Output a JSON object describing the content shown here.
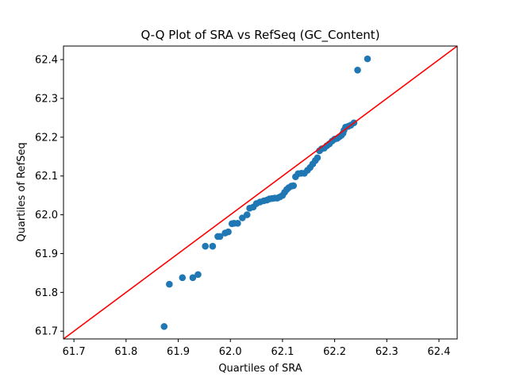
{
  "chart_data": {
    "type": "scatter",
    "title": "Q-Q Plot of SRA vs RefSeq (GC_Content)",
    "xlabel": "Quartiles of SRA",
    "ylabel": "Quartiles of RefSeq",
    "xlim": [
      61.68,
      62.435
    ],
    "ylim": [
      61.68,
      62.435
    ],
    "xticks": [
      61.7,
      61.8,
      61.9,
      62.0,
      62.1,
      62.2,
      62.3,
      62.4
    ],
    "yticks": [
      61.7,
      61.8,
      61.9,
      62.0,
      62.1,
      62.2,
      62.3,
      62.4
    ],
    "grid": false,
    "point_color": "#1f77b4",
    "reference_line": {
      "color": "#ff0000",
      "from": [
        61.68,
        61.68
      ],
      "to": [
        62.435,
        62.435
      ]
    },
    "points": [
      [
        61.873,
        61.712
      ],
      [
        61.883,
        61.821
      ],
      [
        61.908,
        61.838
      ],
      [
        61.928,
        61.838
      ],
      [
        61.938,
        61.846
      ],
      [
        61.952,
        61.919
      ],
      [
        61.966,
        61.919
      ],
      [
        61.976,
        61.944
      ],
      [
        61.98,
        61.944
      ],
      [
        61.99,
        61.953
      ],
      [
        61.996,
        61.956
      ],
      [
        62.003,
        61.977
      ],
      [
        62.007,
        61.978
      ],
      [
        62.014,
        61.978
      ],
      [
        62.023,
        61.992
      ],
      [
        62.032,
        62.0
      ],
      [
        62.037,
        62.017
      ],
      [
        62.044,
        62.02
      ],
      [
        62.05,
        62.029
      ],
      [
        62.057,
        62.033
      ],
      [
        62.064,
        62.036
      ],
      [
        62.07,
        62.038
      ],
      [
        62.075,
        62.041
      ],
      [
        62.08,
        62.042
      ],
      [
        62.085,
        62.043
      ],
      [
        62.09,
        62.043
      ],
      [
        62.095,
        62.046
      ],
      [
        62.1,
        62.05
      ],
      [
        62.104,
        62.058
      ],
      [
        62.108,
        62.065
      ],
      [
        62.112,
        62.07
      ],
      [
        62.117,
        62.074
      ],
      [
        62.121,
        62.075
      ],
      [
        62.125,
        62.098
      ],
      [
        62.13,
        62.106
      ],
      [
        62.136,
        62.107
      ],
      [
        62.142,
        62.107
      ],
      [
        62.148,
        62.115
      ],
      [
        62.153,
        62.122
      ],
      [
        62.158,
        62.131
      ],
      [
        62.163,
        62.14
      ],
      [
        62.167,
        62.147
      ],
      [
        62.171,
        62.165
      ],
      [
        62.175,
        62.17
      ],
      [
        62.18,
        62.172
      ],
      [
        62.185,
        62.178
      ],
      [
        62.19,
        62.183
      ],
      [
        62.195,
        62.19
      ],
      [
        62.2,
        62.195
      ],
      [
        62.205,
        62.197
      ],
      [
        62.209,
        62.201
      ],
      [
        62.213,
        62.205
      ],
      [
        62.216,
        62.21
      ],
      [
        62.218,
        62.218
      ],
      [
        62.221,
        62.226
      ],
      [
        62.226,
        62.228
      ],
      [
        62.231,
        62.231
      ],
      [
        62.237,
        62.237
      ],
      [
        62.244,
        62.373
      ],
      [
        62.263,
        62.402
      ]
    ]
  }
}
